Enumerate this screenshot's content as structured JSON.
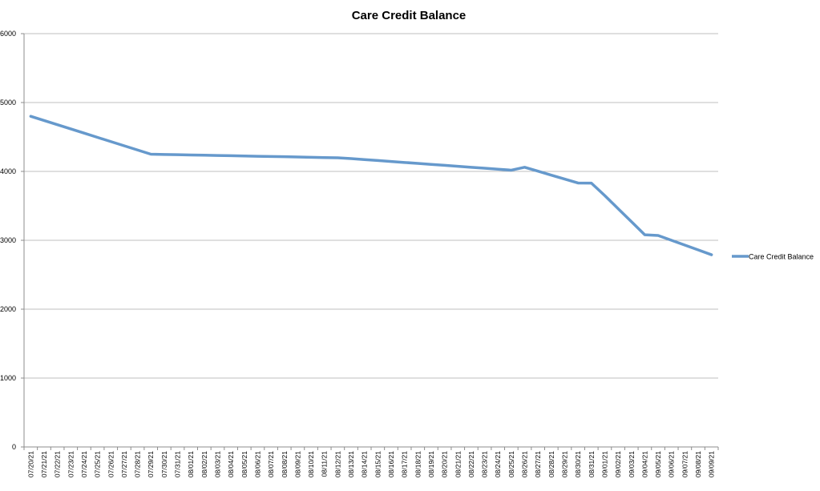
{
  "chart_data": {
    "type": "line",
    "title": "Care Credit Balance",
    "xlabel": "",
    "ylabel": "",
    "ylim": [
      0,
      6000
    ],
    "yticks": [
      "0",
      "1000",
      "2000",
      "3000",
      "4000",
      "5000",
      "6000"
    ],
    "categories": [
      "07/20/21",
      "07/21/21",
      "07/22/21",
      "07/23/21",
      "07/24/21",
      "07/25/21",
      "07/26/21",
      "07/27/21",
      "07/28/21",
      "07/29/21",
      "07/30/21",
      "07/31/21",
      "08/01/21",
      "08/02/21",
      "08/03/21",
      "08/04/21",
      "08/05/21",
      "08/06/21",
      "08/07/21",
      "08/08/21",
      "08/09/21",
      "08/10/21",
      "08/11/21",
      "08/12/21",
      "08/13/21",
      "08/14/21",
      "08/15/21",
      "08/16/21",
      "08/17/21",
      "08/18/21",
      "08/19/21",
      "08/20/21",
      "08/21/21",
      "08/22/21",
      "08/23/21",
      "08/24/21",
      "08/25/21",
      "08/26/21",
      "08/27/21",
      "08/28/21",
      "08/29/21",
      "08/30/21",
      "08/31/21",
      "09/01/21",
      "09/02/21",
      "09/03/21",
      "09/04/21",
      "09/05/21",
      "09/06/21",
      "09/07/21",
      "09/08/21",
      "09/09/21"
    ],
    "series": [
      {
        "name": "Care Credit Balance",
        "color": "#6699cc",
        "values": [
          4800,
          4739,
          4678,
          4617,
          4556,
          4494,
          4433,
          4372,
          4311,
          4250,
          4246,
          4243,
          4239,
          4235,
          4231,
          4228,
          4224,
          4220,
          4216,
          4213,
          4209,
          4205,
          4201,
          4198,
          4186,
          4172,
          4158,
          4144,
          4130,
          4116,
          4102,
          4088,
          4074,
          4060,
          4046,
          4032,
          4018,
          4060,
          4003,
          3946,
          3889,
          3832,
          3830,
          3650,
          3460,
          3270,
          3080,
          3070,
          3000,
          2930,
          2860,
          2790
        ]
      }
    ],
    "grid": true,
    "legend_position": "right"
  }
}
